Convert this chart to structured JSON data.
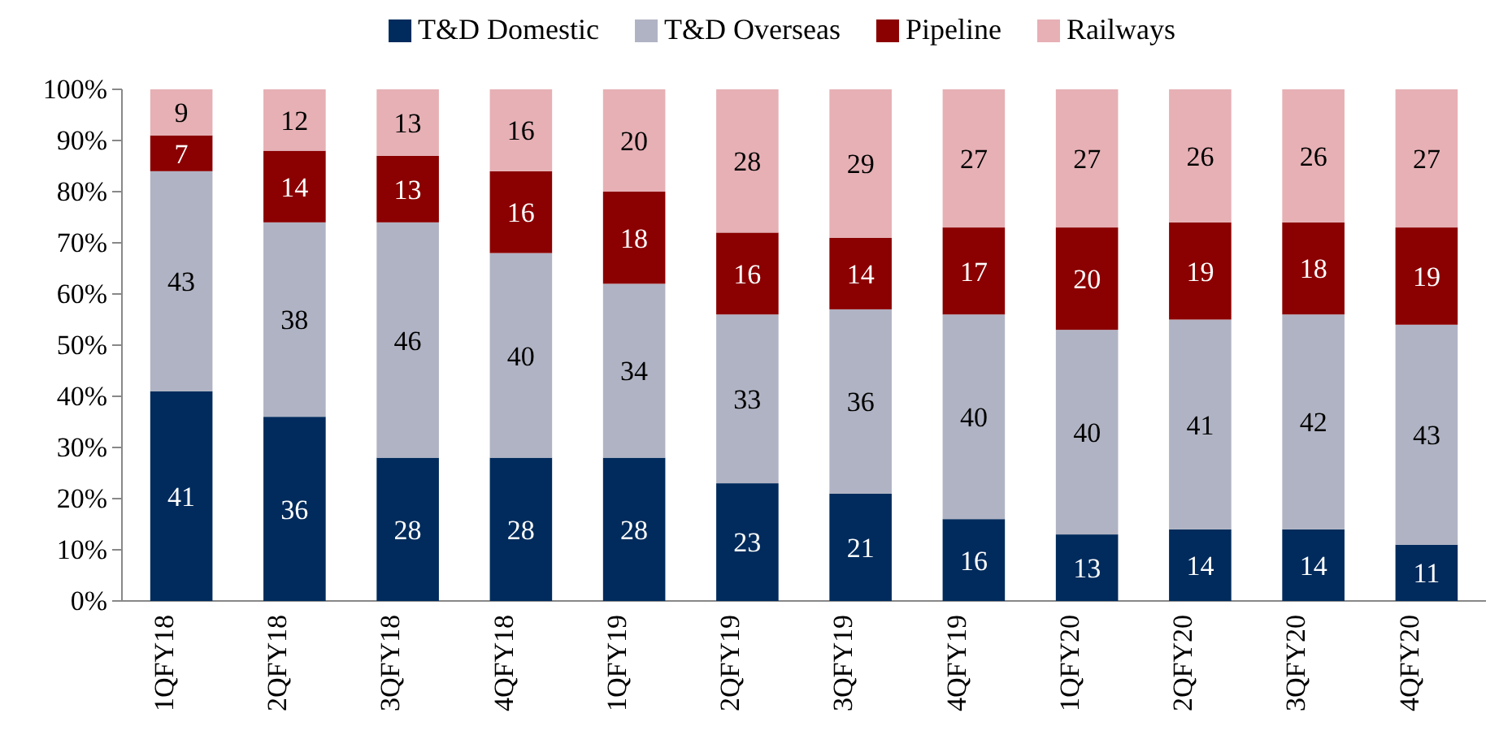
{
  "chart_data": {
    "type": "bar",
    "stacked": true,
    "categories": [
      "1QFY18",
      "2QFY18",
      "3QFY18",
      "4QFY18",
      "1QFY19",
      "2QFY19",
      "3QFY19",
      "4QFY19",
      "1QFY20",
      "2QFY20",
      "3QFY20",
      "4QFY20"
    ],
    "series": [
      {
        "name": "T&D Domestic",
        "color": "#002b5c",
        "values": [
          41,
          36,
          28,
          28,
          28,
          23,
          21,
          16,
          13,
          14,
          14,
          11
        ]
      },
      {
        "name": "T&D Overseas",
        "color": "#b0b3c3",
        "values": [
          43,
          38,
          46,
          40,
          34,
          33,
          36,
          40,
          40,
          41,
          42,
          43
        ]
      },
      {
        "name": "Pipeline",
        "color": "#8b0000",
        "values": [
          7,
          14,
          13,
          16,
          18,
          16,
          14,
          17,
          20,
          19,
          18,
          19
        ]
      },
      {
        "name": "Railways",
        "color": "#e6b0b5",
        "values": [
          9,
          12,
          13,
          16,
          20,
          28,
          29,
          27,
          27,
          26,
          26,
          27
        ]
      }
    ],
    "ylim": [
      0,
      100
    ],
    "yticks": [
      {
        "value": 0,
        "label": "0%"
      },
      {
        "value": 10,
        "label": "10%"
      },
      {
        "value": 20,
        "label": "20%"
      },
      {
        "value": 30,
        "label": "30%"
      },
      {
        "value": 40,
        "label": "40%"
      },
      {
        "value": 50,
        "label": "50%"
      },
      {
        "value": 60,
        "label": "60%"
      },
      {
        "value": 70,
        "label": "70%"
      },
      {
        "value": 80,
        "label": "80%"
      },
      {
        "value": 90,
        "label": "90%"
      },
      {
        "value": 100,
        "label": "100%"
      }
    ],
    "data_labels": true,
    "legend": "top",
    "grid": false
  }
}
